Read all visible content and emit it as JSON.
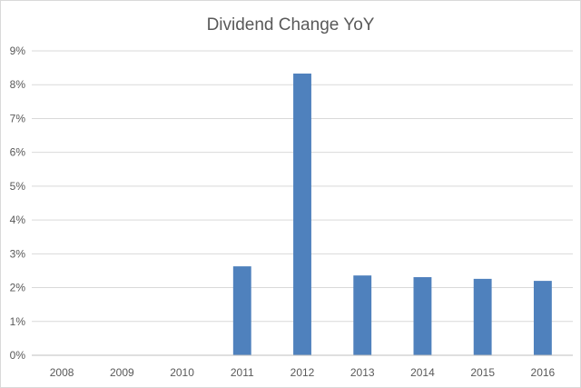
{
  "chart_data": {
    "type": "bar",
    "title": "Dividend Change YoY",
    "xlabel": "",
    "ylabel": "",
    "categories": [
      "2008",
      "2009",
      "2010",
      "2011",
      "2012",
      "2013",
      "2014",
      "2015",
      "2016"
    ],
    "values": [
      0,
      0,
      0,
      2.63,
      8.33,
      2.36,
      2.31,
      2.26,
      2.2
    ],
    "value_unit": "%",
    "ylim": [
      0,
      9
    ],
    "y_ticks": [
      "0%",
      "1%",
      "2%",
      "3%",
      "4%",
      "5%",
      "6%",
      "7%",
      "8%",
      "9%"
    ],
    "grid": true,
    "legend": "none",
    "colors": {
      "bar": "#4f81bd",
      "grid": "#d9d9d9",
      "axis": "#bfbfbf",
      "text": "#595959",
      "title": "#595959"
    }
  }
}
